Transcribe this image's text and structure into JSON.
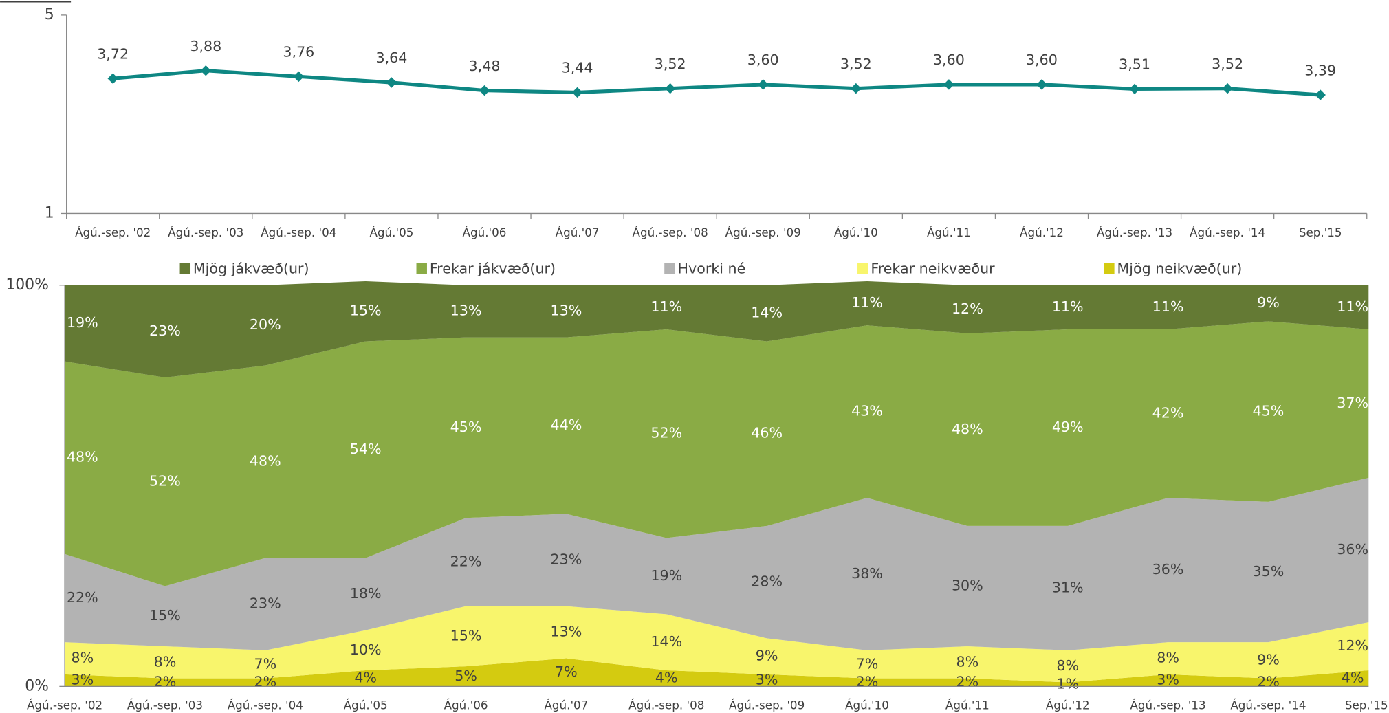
{
  "chart_data": [
    {
      "type": "line",
      "categories": [
        "Ágú.-sep. '02",
        "Ágú.-sep. '03",
        "Ágú.-sep. '04",
        "Ágú.'05",
        "Ágú.'06",
        "Ágú.'07",
        "Ágú.-sep. '08",
        "Ágú.-sep. '09",
        "Ágú.'10",
        "Ágú.'11",
        "Ágú.'12",
        "Ágú.-sep. '13",
        "Ágú.-sep. '14",
        "Sep.'15"
      ],
      "values": [
        3.72,
        3.88,
        3.76,
        3.64,
        3.48,
        3.44,
        3.52,
        3.6,
        3.52,
        3.6,
        3.6,
        3.51,
        3.52,
        3.39
      ],
      "value_labels": [
        "3,72",
        "3,88",
        "3,76",
        "3,64",
        "3,48",
        "3,44",
        "3,52",
        "3,60",
        "3,52",
        "3,60",
        "3,60",
        "3,51",
        "3,52",
        "3,39"
      ],
      "color": "#0e8783",
      "ylim": [
        1,
        5
      ],
      "yticks": [
        1,
        5
      ]
    },
    {
      "type": "stacked_area",
      "categories": [
        "Ágú.-sep. '02",
        "Ágú.-sep. '03",
        "Ágú.-sep. '04",
        "Ágú.'05",
        "Ágú.'06",
        "Ágú.'07",
        "Ágú.-sep. '08",
        "Ágú.-sep. '09",
        "Ágú.'10",
        "Ágú.'11",
        "Ágú.'12",
        "Ágú.-sep. '13",
        "Ágú.-sep. '14",
        "Sep.'15"
      ],
      "ylim": [
        0,
        100
      ],
      "yticks": [
        {
          "value": 0,
          "label": "0%"
        },
        {
          "value": 100,
          "label": "100%"
        }
      ],
      "legend": "top",
      "series": [
        {
          "name": "Mjög jákvæð(ur)",
          "color": "#647a34",
          "values": [
            19,
            23,
            20,
            15,
            13,
            13,
            11,
            14,
            11,
            12,
            11,
            11,
            9,
            11
          ],
          "value_labels": [
            "19%",
            "23%",
            "20%",
            "15%",
            "13%",
            "13%",
            "11%",
            "14%",
            "11%",
            "12%",
            "11%",
            "11%",
            "9%",
            "11%"
          ]
        },
        {
          "name": "Frekar jákvæð(ur)",
          "color": "#8aab45",
          "values": [
            48,
            52,
            48,
            54,
            45,
            44,
            52,
            46,
            43,
            48,
            49,
            42,
            45,
            37
          ],
          "value_labels": [
            "48%",
            "52%",
            "48%",
            "54%",
            "45%",
            "44%",
            "52%",
            "46%",
            "43%",
            "48%",
            "49%",
            "42%",
            "45%",
            "37%"
          ]
        },
        {
          "name": "Hvorki né",
          "color": "#b3b3b3",
          "values": [
            22,
            15,
            23,
            18,
            22,
            23,
            19,
            28,
            38,
            30,
            31,
            36,
            35,
            36
          ],
          "value_labels": [
            "22%",
            "15%",
            "23%",
            "18%",
            "22%",
            "23%",
            "19%",
            "28%",
            "38%",
            "30%",
            "31%",
            "36%",
            "35%",
            "36%"
          ]
        },
        {
          "name": "Frekar neikvæður",
          "color": "#f8f56c",
          "values": [
            8,
            8,
            7,
            10,
            15,
            13,
            14,
            9,
            7,
            8,
            8,
            8,
            9,
            12
          ],
          "value_labels": [
            "8%",
            "8%",
            "7%",
            "10%",
            "15%",
            "13%",
            "14%",
            "9%",
            "7%",
            "8%",
            "8%",
            "8%",
            "9%",
            "12%"
          ]
        },
        {
          "name": "Mjög neikvæð(ur)",
          "color": "#d4cb10",
          "values": [
            3,
            2,
            2,
            4,
            5,
            7,
            4,
            3,
            2,
            2,
            1,
            3,
            2,
            4
          ],
          "value_labels": [
            "3%",
            "2%",
            "2%",
            "4%",
            "5%",
            "7%",
            "4%",
            "3%",
            "2%",
            "2%",
            "1%",
            "3%",
            "2%",
            "4%"
          ]
        }
      ]
    }
  ]
}
